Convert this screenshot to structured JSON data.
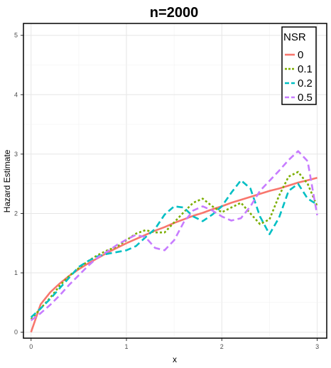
{
  "chart_data": {
    "type": "line",
    "title": "n=2000",
    "xlabel": "x",
    "ylabel": "Hazard Estimate",
    "xlim": [
      -0.08,
      3.1
    ],
    "ylim": [
      -0.1,
      5.2
    ],
    "xticks": [
      0,
      1,
      2,
      3
    ],
    "yticks": [
      0,
      1,
      2,
      3,
      4,
      5
    ],
    "grid": true,
    "legend": {
      "title": "NSR",
      "position": "top-right"
    },
    "x": [
      0,
      0.1,
      0.2,
      0.3,
      0.4,
      0.5,
      0.6,
      0.7,
      0.8,
      0.9,
      1.0,
      1.1,
      1.2,
      1.3,
      1.4,
      1.5,
      1.6,
      1.7,
      1.8,
      1.9,
      2.0,
      2.1,
      2.2,
      2.3,
      2.4,
      2.5,
      2.6,
      2.7,
      2.8,
      2.9,
      3.0
    ],
    "series": [
      {
        "name": "0",
        "color": "#F8766D",
        "dash": "",
        "values": [
          0.0,
          0.47,
          0.67,
          0.82,
          0.95,
          1.06,
          1.16,
          1.25,
          1.34,
          1.42,
          1.5,
          1.57,
          1.64,
          1.71,
          1.77,
          1.84,
          1.9,
          1.96,
          2.01,
          2.07,
          2.12,
          2.18,
          2.23,
          2.28,
          2.33,
          2.38,
          2.42,
          2.47,
          2.52,
          2.56,
          2.6
        ]
      },
      {
        "name": "0.1",
        "color": "#7CAE00",
        "dash": "3,3",
        "values": [
          0.22,
          0.4,
          0.58,
          0.78,
          0.95,
          1.08,
          1.2,
          1.3,
          1.38,
          1.44,
          1.55,
          1.66,
          1.72,
          1.68,
          1.68,
          1.85,
          2.02,
          2.18,
          2.25,
          2.12,
          2.02,
          2.1,
          2.18,
          2.0,
          1.82,
          1.9,
          2.3,
          2.62,
          2.7,
          2.5,
          2.12
        ]
      },
      {
        "name": "0.2",
        "color": "#00BFC4",
        "dash": "9,5",
        "values": [
          0.25,
          0.4,
          0.56,
          0.74,
          0.92,
          1.1,
          1.2,
          1.28,
          1.32,
          1.35,
          1.38,
          1.45,
          1.6,
          1.74,
          1.98,
          2.12,
          2.1,
          1.95,
          1.87,
          1.98,
          2.12,
          2.35,
          2.56,
          2.42,
          1.95,
          1.65,
          1.93,
          2.38,
          2.5,
          2.25,
          2.15
        ]
      },
      {
        "name": "0.5",
        "color": "#C77CFF",
        "dash": "9,5",
        "values": [
          0.2,
          0.32,
          0.46,
          0.62,
          0.8,
          0.96,
          1.12,
          1.26,
          1.36,
          1.47,
          1.56,
          1.64,
          1.6,
          1.42,
          1.38,
          1.55,
          1.85,
          2.05,
          2.12,
          2.05,
          1.95,
          1.88,
          1.92,
          2.12,
          2.38,
          2.55,
          2.72,
          2.9,
          3.05,
          2.88,
          1.97
        ]
      }
    ]
  }
}
